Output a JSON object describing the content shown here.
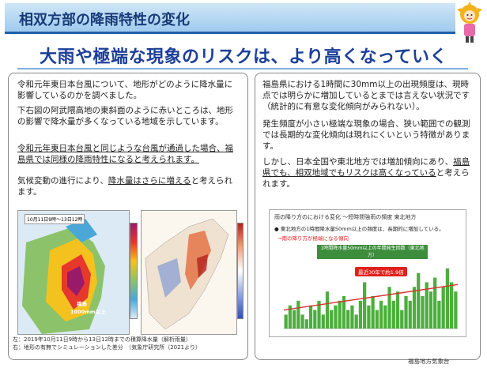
{
  "header": {
    "title": "相双方部の降雨特性の変化"
  },
  "headline": "大雨や極端な現象のリスクは、より高くなっていく",
  "left": {
    "p1": "令和元年東日本台風について、地形がどのように降水量に影響しているのかを調べました。",
    "p2": "下右図の阿武隈高地の東斜面のように赤いところは、地形の影響で降水量が多くなっている地域を示しています。",
    "p3": "令和元年東日本台風と同じような台風が通過した場合、福島県では同様の降雨特性になると考えられます。",
    "p4a": "気候変動の進行により、",
    "p4b": "降水量はさらに増える",
    "p4c": "と考えられます。",
    "map_left_label": "10月11日9時～13日12時",
    "map_left_annotation_1": "福島",
    "map_left_annotation_2": "1000mm以上",
    "caption_1": "左：2019年10月11日9時から13日12時までの積算降水量（解析雨量）",
    "caption_2": "右：地形の有無でシミュレーションした差分　（気象庁研究所（2021より）"
  },
  "right": {
    "p1": "福島県における1時間に30mm以上の出現頻度は、現時点では明らかに増加しているとまでは言えない状況です（統計的に有意な変化傾向がみられない）。",
    "p2": "発生頻度が小さい極端な現象の場合、狭い範囲での観測では長期的な変化傾向は現れにくいという特徴があります。",
    "p3a": "しかし、日本全国や東北地方では増加傾向にあり、",
    "p3b": "福島県でも、相双地域でもリスクは高くなっている",
    "p3c": "と考えられます。",
    "chart_title": "雨の降り方のにおける変化 ～短時間強雨の頻度 東北地方",
    "chart_note": "● 東北地方の1時間降水量50mm以上の頻度は、長期的に増加している。",
    "chart_note2": "→雨の降り方が極端になる傾向",
    "chart_inner_title_1": "1時間降水量50mm以上の年間発生回数（東北地方）",
    "chart_inner_title_2": "（1979～2020年）",
    "chart_callout": "最近30年で約1.9倍"
  },
  "colors": {
    "accent": "#1c3f99",
    "bar": "#4cae3c",
    "trend": "#d6332a"
  },
  "chart_data": {
    "type": "bar",
    "x": [
      1979,
      1980,
      1981,
      1982,
      1983,
      1984,
      1985,
      1986,
      1987,
      1988,
      1989,
      1990,
      1991,
      1992,
      1993,
      1994,
      1995,
      1996,
      1997,
      1998,
      1999,
      2000,
      2001,
      2002,
      2003,
      2004,
      2005,
      2006,
      2007,
      2008,
      2009,
      2010,
      2011,
      2012,
      2013,
      2014,
      2015,
      2016,
      2017,
      2018,
      2019,
      2020
    ],
    "values": [
      3,
      5,
      4,
      6,
      3,
      2,
      5,
      4,
      6,
      3,
      8,
      4,
      5,
      6,
      7,
      4,
      5,
      3,
      6,
      10,
      5,
      7,
      4,
      6,
      5,
      9,
      6,
      8,
      4,
      7,
      6,
      9,
      12,
      7,
      10,
      8,
      11,
      6,
      9,
      13,
      10,
      8
    ],
    "trend": [
      4,
      9.5
    ]
  },
  "footer": "福島地方気象台"
}
